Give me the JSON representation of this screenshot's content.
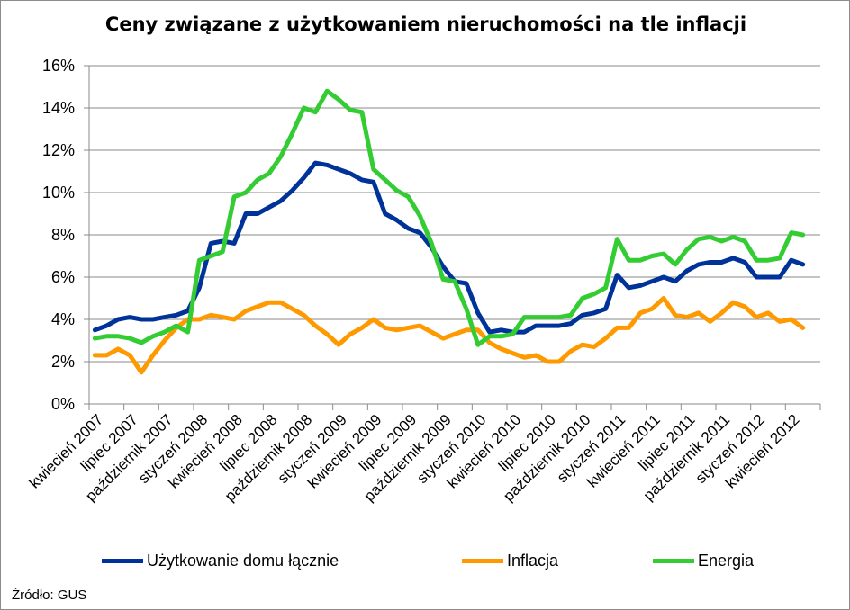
{
  "chart_data": {
    "type": "line",
    "title": "Ceny związane z użytkowaniem nieruchomości na tle inflacji",
    "xlabel": "",
    "ylabel": "",
    "ylim": [
      0,
      16
    ],
    "yticks": [
      "0%",
      "2%",
      "4%",
      "6%",
      "8%",
      "10%",
      "12%",
      "14%",
      "16%"
    ],
    "grid": true,
    "legend_position": "bottom",
    "categories": [
      "kwiecień 2007",
      "maj 2007",
      "czerwiec 2007",
      "lipiec 2007",
      "sierpień 2007",
      "wrzesień 2007",
      "październik 2007",
      "listopad 2007",
      "grudzień 2007",
      "styczeń 2008",
      "luty 2008",
      "marzec 2008",
      "kwiecień 2008",
      "maj 2008",
      "czerwiec 2008",
      "lipiec 2008",
      "sierpień 2008",
      "wrzesień 2008",
      "październik 2008",
      "listopad 2008",
      "grudzień 2008",
      "styczeń 2009",
      "luty 2009",
      "marzec 2009",
      "kwiecień 2009",
      "maj 2009",
      "czerwiec 2009",
      "lipiec 2009",
      "sierpień 2009",
      "wrzesień 2009",
      "październik 2009",
      "listopad 2009",
      "grudzień 2009",
      "styczeń 2010",
      "luty 2010",
      "marzec 2010",
      "kwiecień 2010",
      "maj 2010",
      "czerwiec 2010",
      "lipiec 2010",
      "sierpień 2010",
      "wrzesień 2010",
      "październik 2010",
      "listopad 2010",
      "grudzień 2010",
      "styczeń 2011",
      "luty 2011",
      "marzec 2011",
      "kwiecień 2011",
      "maj 2011",
      "czerwiec 2011",
      "lipiec 2011",
      "sierpień 2011",
      "wrzesień 2011",
      "październik 2011",
      "listopad 2011",
      "grudzień 2011",
      "styczeń 2012",
      "luty 2012",
      "marzec 2012",
      "kwiecień 2012",
      "maj 2012",
      "czerwiec 2012"
    ],
    "tick_labels": [
      "kwiecień 2007",
      "lipiec 2007",
      "październik 2007",
      "styczeń 2008",
      "kwiecień 2008",
      "lipiec 2008",
      "październik 2008",
      "styczeń 2009",
      "kwiecień 2009",
      "lipiec 2009",
      "październik 2009",
      "styczeń 2010",
      "kwiecień 2010",
      "lipiec 2010",
      "październik 2010",
      "styczeń 2011",
      "kwiecień 2011",
      "lipiec 2011",
      "październik 2011",
      "styczeń 2012",
      "kwiecień 2012"
    ],
    "series": [
      {
        "name": "Użytkowanie domu łącznie",
        "color": "#003399",
        "values": [
          3.5,
          3.7,
          4.0,
          4.1,
          4.0,
          4.0,
          4.1,
          4.2,
          4.4,
          5.5,
          7.6,
          7.7,
          7.6,
          9.0,
          9.0,
          9.3,
          9.6,
          10.1,
          10.7,
          11.4,
          11.3,
          11.1,
          10.9,
          10.6,
          10.5,
          9.0,
          8.7,
          8.3,
          8.1,
          7.4,
          6.5,
          5.8,
          5.7,
          4.3,
          3.4,
          3.5,
          3.4,
          3.4,
          3.7,
          3.7,
          3.7,
          3.8,
          4.2,
          4.3,
          4.5,
          6.1,
          5.5,
          5.6,
          5.8,
          6.0,
          5.8,
          6.3,
          6.6,
          6.7,
          6.7,
          6.9,
          6.7,
          6.0,
          6.0,
          6.0,
          6.8,
          6.6,
          null
        ]
      },
      {
        "name": "Inflacja",
        "color": "#ff9900",
        "values": [
          2.3,
          2.3,
          2.6,
          2.3,
          1.5,
          2.3,
          3.0,
          3.6,
          4.0,
          4.0,
          4.2,
          4.1,
          4.0,
          4.4,
          4.6,
          4.8,
          4.8,
          4.5,
          4.2,
          3.7,
          3.3,
          2.8,
          3.3,
          3.6,
          4.0,
          3.6,
          3.5,
          3.6,
          3.7,
          3.4,
          3.1,
          3.3,
          3.5,
          3.5,
          2.9,
          2.6,
          2.4,
          2.2,
          2.3,
          2.0,
          2.0,
          2.5,
          2.8,
          2.7,
          3.1,
          3.6,
          3.6,
          4.3,
          4.5,
          5.0,
          4.2,
          4.1,
          4.3,
          3.9,
          4.3,
          4.8,
          4.6,
          4.1,
          4.3,
          3.9,
          4.0,
          3.6,
          null
        ]
      },
      {
        "name": "Energia",
        "color": "#33cc33",
        "values": [
          3.1,
          3.2,
          3.2,
          3.1,
          2.9,
          3.2,
          3.4,
          3.7,
          3.4,
          6.8,
          7.0,
          7.2,
          9.8,
          10.0,
          10.6,
          10.9,
          11.7,
          12.8,
          14.0,
          13.8,
          14.8,
          14.4,
          13.9,
          13.8,
          11.1,
          10.6,
          10.1,
          9.8,
          8.9,
          7.6,
          5.9,
          5.8,
          4.5,
          2.8,
          3.2,
          3.2,
          3.3,
          4.1,
          4.1,
          4.1,
          4.1,
          4.2,
          5.0,
          5.2,
          5.5,
          7.8,
          6.8,
          6.8,
          7.0,
          7.1,
          6.6,
          7.3,
          7.8,
          7.9,
          7.7,
          7.9,
          7.7,
          6.8,
          6.8,
          6.9,
          8.1,
          8.0,
          null
        ]
      }
    ]
  },
  "source": "Źródło: GUS"
}
